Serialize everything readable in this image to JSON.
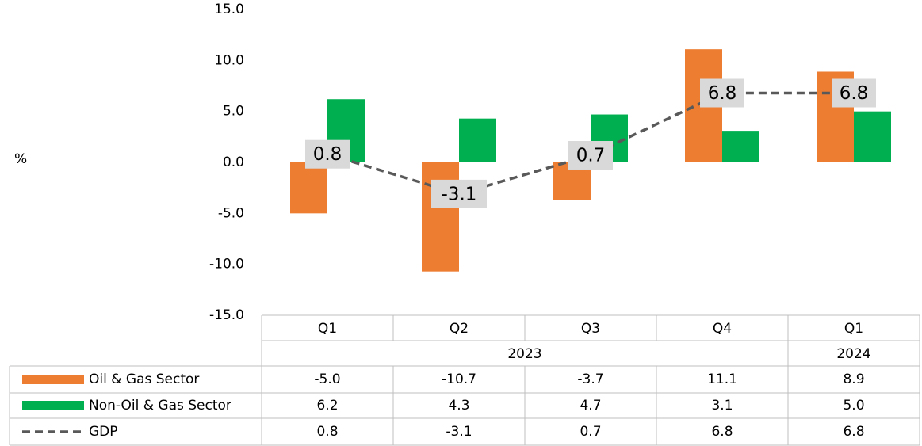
{
  "chart_data": {
    "type": "bar-line-table",
    "y_label": "%",
    "categories": [
      "Q1",
      "Q2",
      "Q3",
      "Q4",
      "Q1"
    ],
    "groups": [
      {
        "label": "2023",
        "span": 4
      },
      {
        "label": "2024",
        "span": 1
      }
    ],
    "series": [
      {
        "name": "Oil & Gas Sector",
        "type": "bar",
        "color": "#ed7d31",
        "values": [
          -5.0,
          -10.7,
          -3.7,
          11.1,
          8.9
        ],
        "value_labels": [
          "-5.0",
          "-10.7",
          "-3.7",
          "11.1",
          "8.9"
        ]
      },
      {
        "name": "Non-Oil & Gas Sector",
        "type": "bar",
        "color": "#00b050",
        "values": [
          6.2,
          4.3,
          4.7,
          3.1,
          5.0
        ],
        "value_labels": [
          "6.2",
          "4.3",
          "4.7",
          "3.1",
          "5.0"
        ]
      },
      {
        "name": "GDP",
        "type": "line",
        "dashed": true,
        "color": "#595959",
        "values": [
          0.8,
          -3.1,
          0.7,
          6.8,
          6.8
        ],
        "value_labels": [
          "0.8",
          "-3.1",
          "0.7",
          "6.8",
          "6.8"
        ]
      }
    ],
    "ylim": [
      -15,
      15
    ],
    "yticks": [
      {
        "value": -15,
        "label": "-15.0"
      },
      {
        "value": -10,
        "label": "-10.0"
      },
      {
        "value": -5,
        "label": "-5.0"
      },
      {
        "value": 0,
        "label": "0.0"
      },
      {
        "value": 5,
        "label": "5.0"
      },
      {
        "value": 10,
        "label": "10.0"
      },
      {
        "value": 15,
        "label": "15.0"
      }
    ]
  }
}
